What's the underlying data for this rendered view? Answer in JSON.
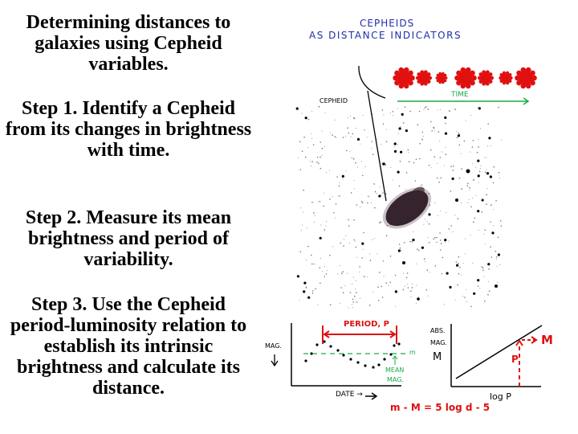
{
  "left_column": {
    "title": "Determining distances to galaxies using Cepheid variables.",
    "step1": "Step 1. Identify a Cepheid from its changes in brightness with time.",
    "step2": "Step 2. Measure its mean brightness and period of variability.",
    "step3": "Step 3. Use the Cepheid period-luminosity relation to establish its intrinsic brightness and calculate its distance."
  },
  "figure": {
    "heading_line1": "CEPHEIDS",
    "heading_line2": "AS DISTANCE INDICATORS",
    "cepheid_label": "CEPHEID",
    "time_label": "TIME",
    "star_sequence_count": 7,
    "light_curve": {
      "y_label": "MAG.",
      "x_label": "DATE →",
      "period_label": "PERIOD, P",
      "mean_label_line1": "MEAN",
      "mean_label_line2": "MAG.",
      "mean_symbol": "m"
    },
    "pl_relation": {
      "y_label_line1": "ABS.",
      "y_label_line2": "MAG.",
      "y_symbol": "M",
      "x_label": "log P",
      "p_marker": "P",
      "m_marker": "M"
    },
    "equation": "m - M = 5 log d - 5"
  },
  "colors": {
    "heading": "#1f2fa8",
    "red": "#e01010",
    "green": "#1aa84a",
    "ink": "#000000"
  }
}
